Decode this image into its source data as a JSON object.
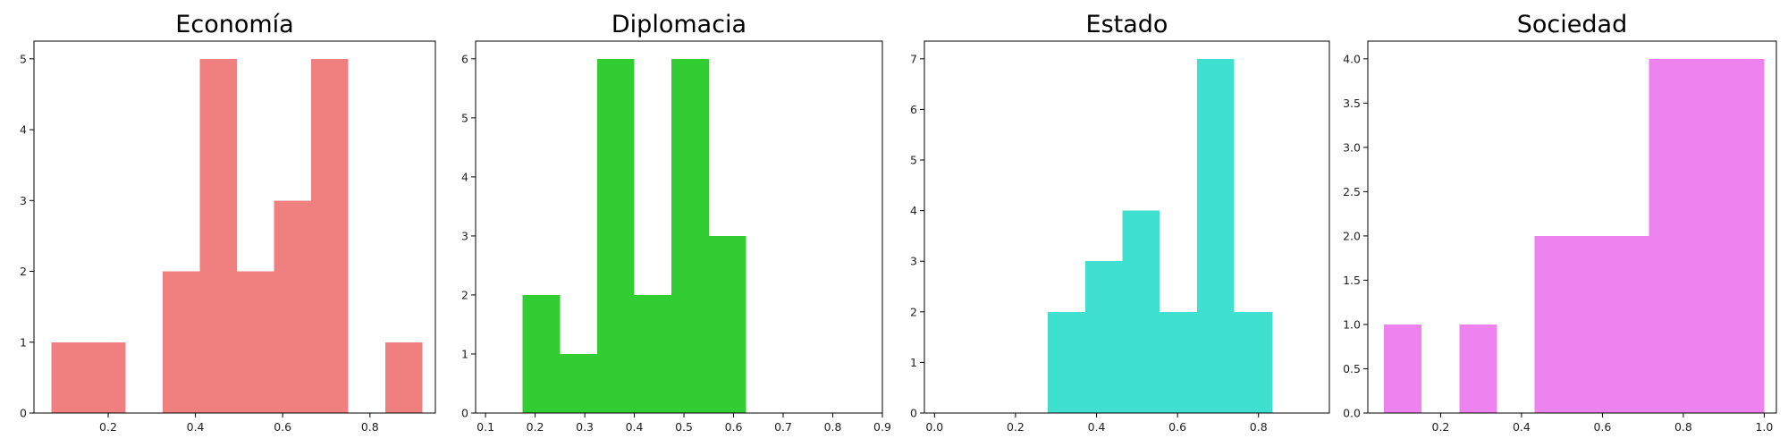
{
  "chart_data": [
    {
      "type": "bar",
      "title": "Economía",
      "color": "#f08080",
      "xlim": [
        0.03,
        0.95
      ],
      "ylim": [
        0,
        5.25
      ],
      "xticks": [
        {
          "v": 0.2,
          "label": "0.2"
        },
        {
          "v": 0.4,
          "label": "0.4"
        },
        {
          "v": 0.6,
          "label": "0.6"
        },
        {
          "v": 0.8,
          "label": "0.8"
        }
      ],
      "yticks": [
        {
          "v": 0,
          "label": "0"
        },
        {
          "v": 1,
          "label": "1"
        },
        {
          "v": 2,
          "label": "2"
        },
        {
          "v": 3,
          "label": "3"
        },
        {
          "v": 4,
          "label": "4"
        },
        {
          "v": 5,
          "label": "5"
        }
      ],
      "bins": [
        {
          "x0": 0.07,
          "x1": 0.155,
          "value": 1
        },
        {
          "x0": 0.155,
          "x1": 0.24,
          "value": 1
        },
        {
          "x0": 0.24,
          "x1": 0.325,
          "value": 0
        },
        {
          "x0": 0.325,
          "x1": 0.41,
          "value": 2
        },
        {
          "x0": 0.41,
          "x1": 0.495,
          "value": 5
        },
        {
          "x0": 0.495,
          "x1": 0.58,
          "value": 2
        },
        {
          "x0": 0.58,
          "x1": 0.665,
          "value": 3
        },
        {
          "x0": 0.665,
          "x1": 0.75,
          "value": 5
        },
        {
          "x0": 0.75,
          "x1": 0.835,
          "value": 0
        },
        {
          "x0": 0.835,
          "x1": 0.92,
          "value": 1
        }
      ]
    },
    {
      "type": "bar",
      "title": "Diplomacia",
      "color": "#32cd32",
      "xlim": [
        0.08,
        0.9
      ],
      "ylim": [
        0,
        6.3
      ],
      "xticks": [
        {
          "v": 0.1,
          "label": "0.1"
        },
        {
          "v": 0.2,
          "label": "0.2"
        },
        {
          "v": 0.3,
          "label": "0.3"
        },
        {
          "v": 0.4,
          "label": "0.4"
        },
        {
          "v": 0.5,
          "label": "0.5"
        },
        {
          "v": 0.6,
          "label": "0.6"
        },
        {
          "v": 0.7,
          "label": "0.7"
        },
        {
          "v": 0.8,
          "label": "0.8"
        },
        {
          "v": 0.9,
          "label": "0.9"
        }
      ],
      "yticks": [
        {
          "v": 0,
          "label": "0"
        },
        {
          "v": 1,
          "label": "1"
        },
        {
          "v": 2,
          "label": "2"
        },
        {
          "v": 3,
          "label": "3"
        },
        {
          "v": 4,
          "label": "4"
        },
        {
          "v": 5,
          "label": "5"
        },
        {
          "v": 6,
          "label": "6"
        }
      ],
      "bins": [
        {
          "x0": 0.1,
          "x1": 0.175,
          "value": 0
        },
        {
          "x0": 0.175,
          "x1": 0.25,
          "value": 2
        },
        {
          "x0": 0.25,
          "x1": 0.325,
          "value": 1
        },
        {
          "x0": 0.325,
          "x1": 0.4,
          "value": 6
        },
        {
          "x0": 0.4,
          "x1": 0.475,
          "value": 2
        },
        {
          "x0": 0.475,
          "x1": 0.55,
          "value": 6
        },
        {
          "x0": 0.55,
          "x1": 0.625,
          "value": 3
        },
        {
          "x0": 0.625,
          "x1": 0.7,
          "value": 0
        },
        {
          "x0": 0.7,
          "x1": 0.775,
          "value": 0
        },
        {
          "x0": 0.775,
          "x1": 0.85,
          "value": 0
        }
      ]
    },
    {
      "type": "bar",
      "title": "Estado",
      "color": "#40e0d0",
      "xlim": [
        -0.025,
        0.975
      ],
      "ylim": [
        0,
        7.35
      ],
      "xticks": [
        {
          "v": 0.0,
          "label": "0.0"
        },
        {
          "v": 0.2,
          "label": "0.2"
        },
        {
          "v": 0.4,
          "label": "0.4"
        },
        {
          "v": 0.6,
          "label": "0.6"
        },
        {
          "v": 0.8,
          "label": "0.8"
        }
      ],
      "yticks": [
        {
          "v": 0,
          "label": "0"
        },
        {
          "v": 1,
          "label": "1"
        },
        {
          "v": 2,
          "label": "2"
        },
        {
          "v": 3,
          "label": "3"
        },
        {
          "v": 4,
          "label": "4"
        },
        {
          "v": 5,
          "label": "5"
        },
        {
          "v": 6,
          "label": "6"
        },
        {
          "v": 7,
          "label": "7"
        }
      ],
      "bins": [
        {
          "x0": 0.0,
          "x1": 0.0925,
          "value": 0
        },
        {
          "x0": 0.0925,
          "x1": 0.185,
          "value": 0
        },
        {
          "x0": 0.185,
          "x1": 0.28,
          "value": 0
        },
        {
          "x0": 0.28,
          "x1": 0.372,
          "value": 2
        },
        {
          "x0": 0.372,
          "x1": 0.464,
          "value": 3
        },
        {
          "x0": 0.464,
          "x1": 0.556,
          "value": 4
        },
        {
          "x0": 0.556,
          "x1": 0.648,
          "value": 2
        },
        {
          "x0": 0.648,
          "x1": 0.74,
          "value": 7
        },
        {
          "x0": 0.74,
          "x1": 0.835,
          "value": 2
        }
      ]
    },
    {
      "type": "bar",
      "title": "Sociedad",
      "color": "#ee82ee",
      "xlim": [
        0.02,
        1.03
      ],
      "ylim": [
        0,
        4.2
      ],
      "xticks": [
        {
          "v": 0.2,
          "label": "0.2"
        },
        {
          "v": 0.4,
          "label": "0.4"
        },
        {
          "v": 0.6,
          "label": "0.6"
        },
        {
          "v": 0.8,
          "label": "0.8"
        },
        {
          "v": 1.0,
          "label": "1.0"
        }
      ],
      "yticks": [
        {
          "v": 0,
          "label": "0.0"
        },
        {
          "v": 0.5,
          "label": "0.5"
        },
        {
          "v": 1.0,
          "label": "1.0"
        },
        {
          "v": 1.5,
          "label": "1.5"
        },
        {
          "v": 2.0,
          "label": "2.0"
        },
        {
          "v": 2.5,
          "label": "2.5"
        },
        {
          "v": 3.0,
          "label": "3.0"
        },
        {
          "v": 3.5,
          "label": "3.5"
        },
        {
          "v": 4.0,
          "label": "4.0"
        }
      ],
      "bins": [
        {
          "x0": 0.06,
          "x1": 0.153,
          "value": 1
        },
        {
          "x0": 0.153,
          "x1": 0.246,
          "value": 0
        },
        {
          "x0": 0.246,
          "x1": 0.339,
          "value": 1
        },
        {
          "x0": 0.339,
          "x1": 0.432,
          "value": 0
        },
        {
          "x0": 0.432,
          "x1": 0.525,
          "value": 2
        },
        {
          "x0": 0.525,
          "x1": 0.62,
          "value": 2
        },
        {
          "x0": 0.62,
          "x1": 0.715,
          "value": 2
        },
        {
          "x0": 0.715,
          "x1": 0.81,
          "value": 4
        },
        {
          "x0": 0.81,
          "x1": 0.905,
          "value": 4
        },
        {
          "x0": 0.905,
          "x1": 1.0,
          "value": 4
        }
      ]
    }
  ]
}
